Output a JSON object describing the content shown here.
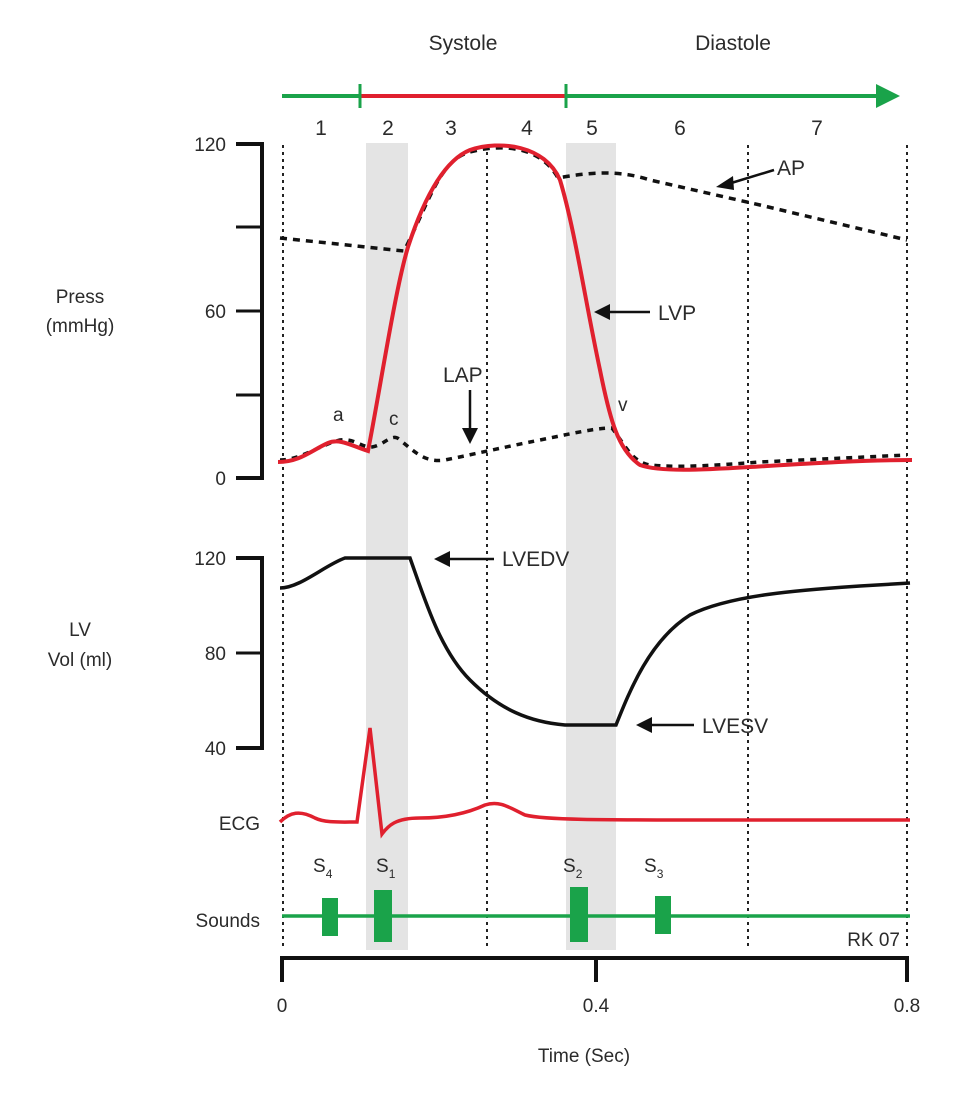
{
  "phases": {
    "systole": "Systole",
    "diastole": "Diastole",
    "numbers": [
      "1",
      "2",
      "3",
      "4",
      "5",
      "6",
      "7"
    ]
  },
  "pressure_panel": {
    "ylabel_line1": "Press",
    "ylabel_line2": "(mmHg)",
    "ticks": [
      "120",
      "60",
      "0"
    ],
    "labels": {
      "ap": "AP",
      "lvp": "LVP",
      "lap": "LAP",
      "a": "a",
      "c": "c",
      "v": "v"
    }
  },
  "volume_panel": {
    "ylabel_line1": "LV",
    "ylabel_line2": "Vol (ml)",
    "ticks": [
      "120",
      "80",
      "40"
    ],
    "labels": {
      "lvedv": "LVEDV",
      "lvesv": "LVESV"
    }
  },
  "ecg_label": "ECG",
  "sounds": {
    "label": "Sounds",
    "items": [
      {
        "main": "S",
        "sub": "4"
      },
      {
        "main": "S",
        "sub": "1"
      },
      {
        "main": "S",
        "sub": "2"
      },
      {
        "main": "S",
        "sub": "3"
      }
    ]
  },
  "credit": "RK 07",
  "x_axis": {
    "ticks": [
      "0",
      "0.4",
      "0.8"
    ],
    "label": "Time (Sec)"
  },
  "colors": {
    "systole_bar": "#e0202e",
    "diastole_bar": "#1aa34a",
    "lvp_line": "#e0202e",
    "ecg_line": "#e0202e",
    "volume_line": "#111111",
    "sounds": "#1aa34a",
    "shade": "#e4e4e4"
  }
}
